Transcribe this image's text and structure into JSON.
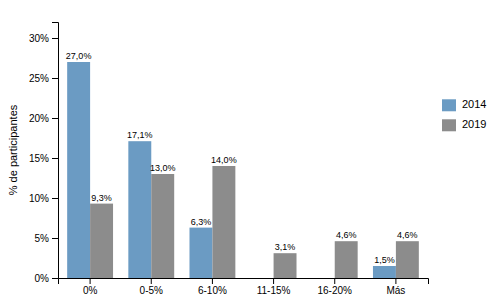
{
  "chart_data": {
    "type": "bar",
    "categories": [
      "0%",
      "0-5%",
      "6-10%",
      "11-15%",
      "16-20%",
      "Más"
    ],
    "series": [
      {
        "name": "2014",
        "color": "#6b9bc3",
        "values": [
          27.0,
          17.1,
          6.3,
          0.0,
          0.0,
          1.5
        ],
        "value_labels": [
          "27,0%",
          "17,1%",
          "6,3%",
          null,
          null,
          "1,5%"
        ]
      },
      {
        "name": "2019",
        "color": "#8c8c8c",
        "values": [
          9.3,
          13.0,
          14.0,
          3.1,
          4.6,
          4.6
        ],
        "value_labels": [
          "9,3%",
          "13,0%",
          "14,0%",
          "3,1%",
          "4,6%",
          "4,6%"
        ]
      }
    ],
    "ylabel": "% de participantes",
    "ylim": [
      0,
      32
    ],
    "yticks": [
      {
        "value": 0,
        "label": "0%"
      },
      {
        "value": 5,
        "label": "5%"
      },
      {
        "value": 10,
        "label": "10%"
      },
      {
        "value": 15,
        "label": "15%"
      },
      {
        "value": 20,
        "label": "20%"
      },
      {
        "value": 25,
        "label": "25%"
      },
      {
        "value": 30,
        "label": "30%"
      }
    ],
    "grid": false,
    "legend": "right",
    "data_labels": true
  }
}
